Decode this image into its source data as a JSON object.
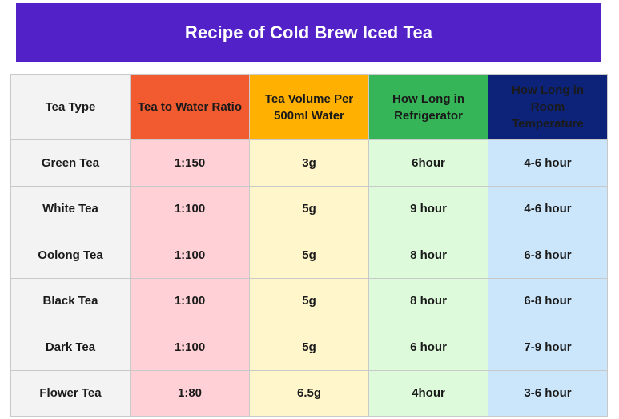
{
  "title": "Recipe of Cold Brew Iced Tea",
  "colors": {
    "title_bg": "#5221c7",
    "ratio_header": "#f25a30",
    "volume_header": "#ffb000",
    "fridge_header": "#35b558",
    "room_header": "#0d237a"
  },
  "table": {
    "headers": [
      "Tea Type",
      "Tea to Water Ratio",
      "Tea Volume Per 500ml Water",
      "How Long in Refrigerator",
      "How Long in Room Temperature"
    ],
    "rows": [
      [
        "Green Tea",
        "1:150",
        "3g",
        "6hour",
        "4-6 hour"
      ],
      [
        "White Tea",
        "1:100",
        "5g",
        "9 hour",
        "4-6 hour"
      ],
      [
        "Oolong Tea",
        "1:100",
        "5g",
        "8 hour",
        "6-8 hour"
      ],
      [
        "Black Tea",
        "1:100",
        "5g",
        "8 hour",
        "6-8 hour"
      ],
      [
        "Dark Tea",
        "1:100",
        "5g",
        "6 hour",
        "7-9 hour"
      ],
      [
        "Flower Tea",
        "1:80",
        "6.5g",
        "4hour",
        "3-6 hour"
      ]
    ]
  }
}
